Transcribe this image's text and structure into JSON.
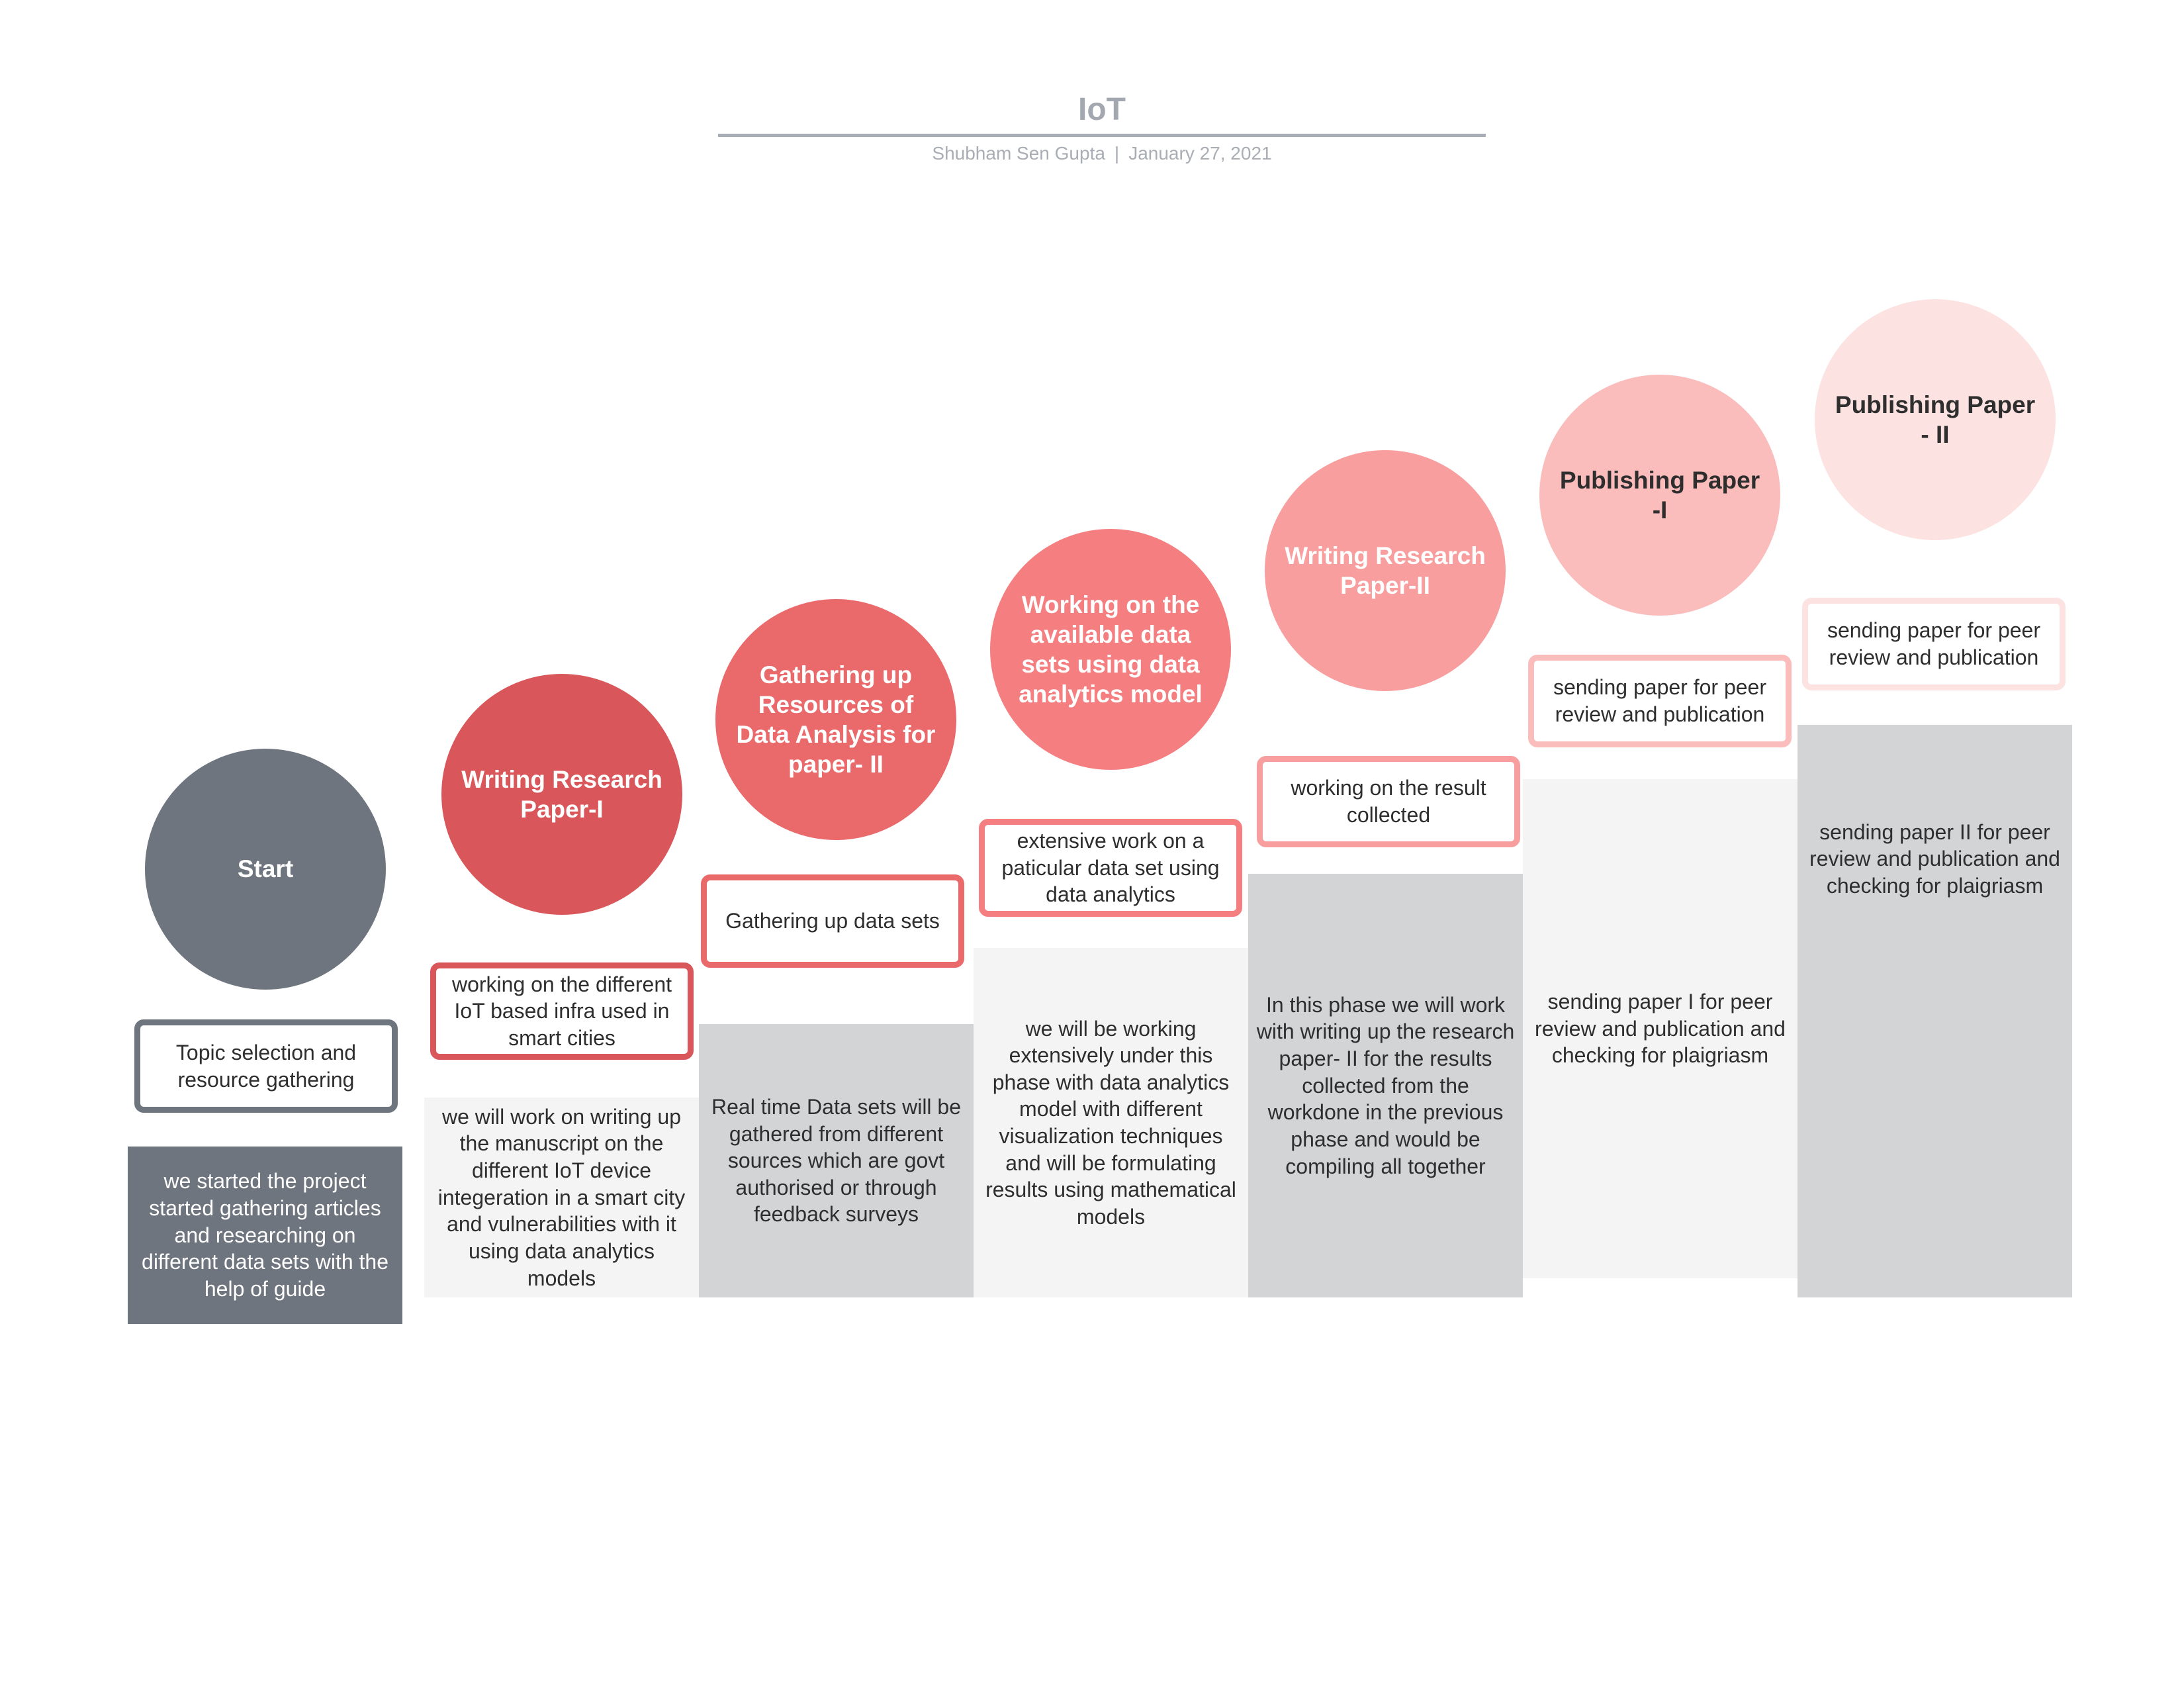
{
  "header": {
    "title": "IoT",
    "author": "Shubham Sen Gupta",
    "separator": "|",
    "date": "January 27, 2021"
  },
  "colors": {
    "start": "#6f757e",
    "step1": "#d9565a",
    "step2": "#ea6a6c",
    "step3": "#f57e80",
    "step4": "#f89e9f",
    "step5": "#fbbcbc",
    "step6": "#fde2e2",
    "panel_dark": "#d3d4d6",
    "panel_light": "#f4f4f4"
  },
  "steps": [
    {
      "title": "Start",
      "label": "Topic selection and resource gathering",
      "description": "we started the project started gathering articles and researching on different data sets with the help of guide"
    },
    {
      "title": "Writing Research Paper-I",
      "label": "working on the different IoT based infra used in smart cities",
      "description": "we will work on writing up the manuscript on the different IoT device integeration in a smart city and vulnerabilities with it using data analytics models"
    },
    {
      "title": "Gathering up Resources of Data Analysis for paper- II",
      "label": "Gathering up data sets",
      "description": "Real time Data sets will be gathered from different sources which are govt authorised or through feedback surveys"
    },
    {
      "title": "Working on the available data sets using data analytics model",
      "label": "extensive work on a paticular data set using data analytics",
      "description": "we will be working extensively under this phase with data analytics model with different visualization techniques and will be formulating results using mathematical models"
    },
    {
      "title": "Writing Research Paper-II",
      "label": "working on the result collected",
      "description": "In this phase we will work with writing up the research paper- II for the results collected from the workdone in the previous phase and would be compiling all together"
    },
    {
      "title": "Publishing Paper -I",
      "label": "sending paper for peer review and publication",
      "description": "sending paper I for peer review and publication and checking for plaigriasm"
    },
    {
      "title": "Publishing Paper - II",
      "label": "sending paper for peer review and publication",
      "description": "sending paper II for peer review and publication and checking for plaigriasm"
    }
  ]
}
